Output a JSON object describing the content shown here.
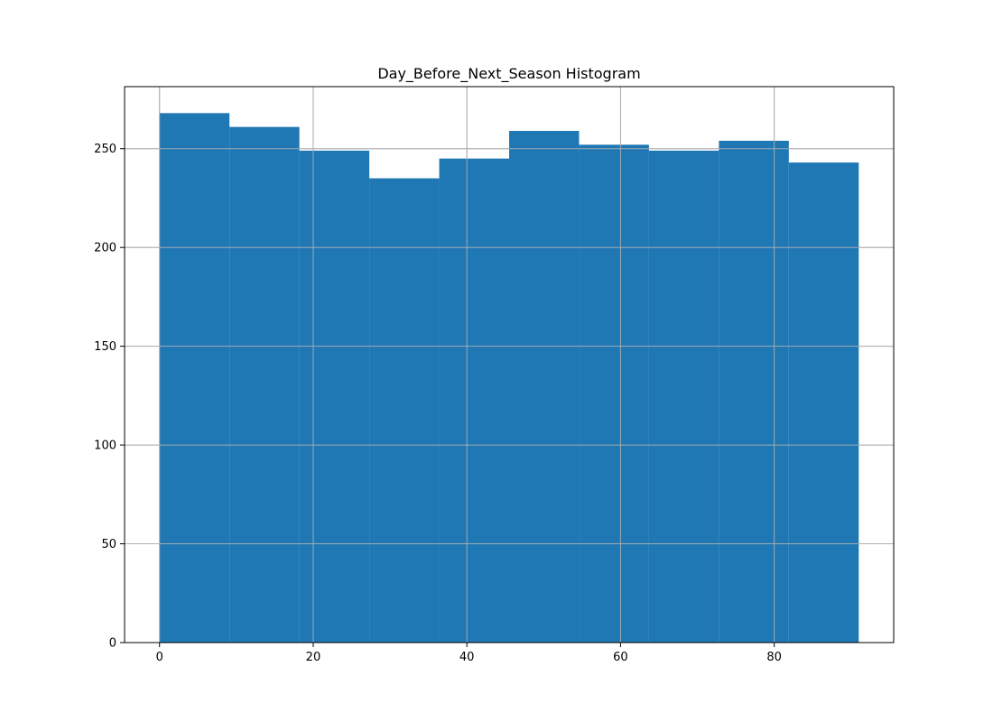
{
  "chart_data": {
    "type": "bar",
    "title": "Day_Before_Next_Season Histogram",
    "xlabel": "",
    "ylabel": "",
    "bins": [
      {
        "start": 0.0,
        "end": 9.1,
        "count": 268
      },
      {
        "start": 9.1,
        "end": 18.2,
        "count": 261
      },
      {
        "start": 18.2,
        "end": 27.3,
        "count": 249
      },
      {
        "start": 27.3,
        "end": 36.4,
        "count": 235
      },
      {
        "start": 36.4,
        "end": 45.5,
        "count": 245
      },
      {
        "start": 45.5,
        "end": 54.6,
        "count": 259
      },
      {
        "start": 54.6,
        "end": 63.7,
        "count": 252
      },
      {
        "start": 63.7,
        "end": 72.8,
        "count": 249
      },
      {
        "start": 72.8,
        "end": 81.9,
        "count": 254
      },
      {
        "start": 81.9,
        "end": 91.0,
        "count": 243
      }
    ],
    "xlim": [
      -4.55,
      95.55
    ],
    "ylim": [
      0,
      281.4
    ],
    "xticks": [
      0,
      20,
      40,
      60,
      80
    ],
    "yticks": [
      0,
      50,
      100,
      150,
      200,
      250
    ],
    "grid": true,
    "bar_color": "#1f77b4",
    "grid_color": "#b0b0b0"
  }
}
